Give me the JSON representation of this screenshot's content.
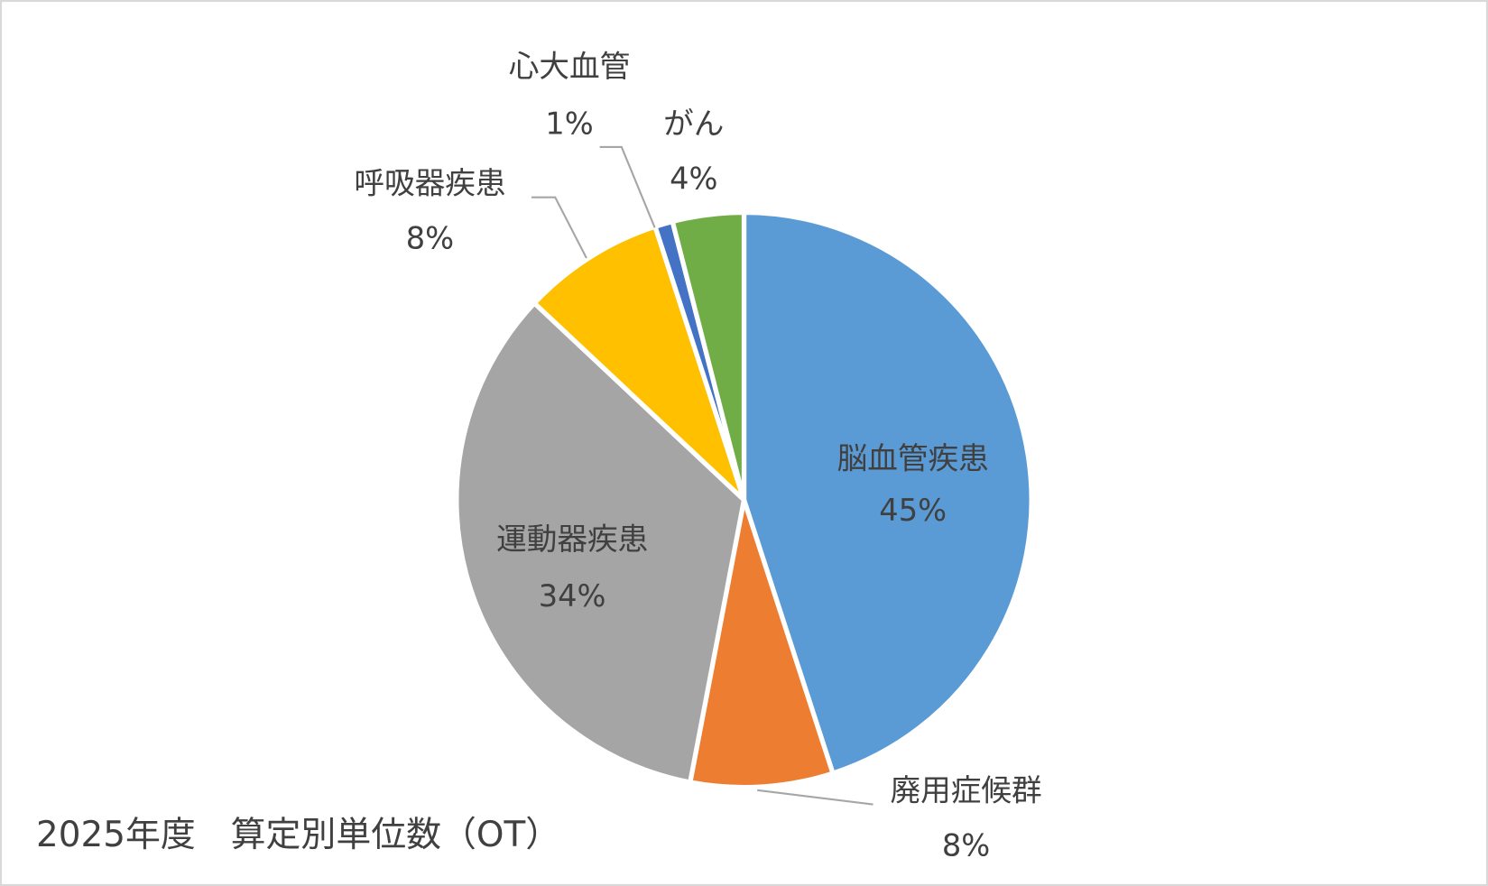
{
  "chart_data": {
    "type": "pie",
    "title": "2025年度　算定別単位数（OT）",
    "categories": [
      "脳血管疾患",
      "廃用症候群",
      "運動器疾患",
      "呼吸器疾患",
      "心大血管",
      "がん"
    ],
    "values": [
      45,
      8,
      34,
      8,
      1,
      4
    ],
    "value_labels": [
      "45%",
      "8%",
      "34%",
      "8%",
      "1%",
      "4%"
    ],
    "colors": [
      "#5b9bd5",
      "#ed7d31",
      "#a5a5a5",
      "#ffc000",
      "#4472c4",
      "#70ad47"
    ]
  }
}
